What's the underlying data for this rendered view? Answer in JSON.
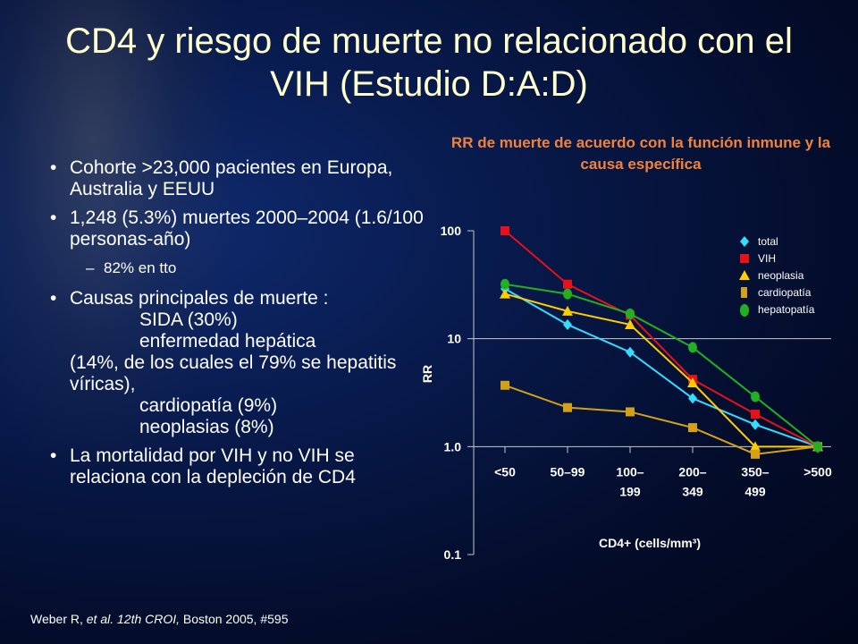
{
  "slide": {
    "title": "CD4 y riesgo de muerte no relacionado con el VIH (Estudio D:A:D)",
    "bullets": {
      "b1": "Cohorte >23,000 pacientes en Europa, Australia y EEUU",
      "b2": "1,248 (5.3%) muertes 2000–2004 (1.6/100 personas-año)",
      "b2_sub": "82% en tto",
      "b3_head": "Causas principales de muerte :",
      "b3_l1": "SIDA (30%)",
      "b3_l2": "enfermedad hepática",
      "b3_l3": "(14%, de los cuales el 79% se hepatitis víricas),",
      "b3_l4": "cardiopatía (9%)",
      "b3_l5": "neoplasias (8%)",
      "b4": "La mortalidad por VIH y no VIH se relaciona con la depleción de CD4"
    },
    "citation": {
      "pre": "Weber R, ",
      "italic": "et al. 12th CROI,",
      "post": " Boston 2005, #595"
    }
  },
  "chart_data": {
    "type": "line",
    "title": "RR de muerte de acuerdo con la función inmune y la causa específica",
    "xlabel": "CD4+ (cells/mm³)",
    "ylabel": "RR",
    "yscale": "log",
    "ylim": [
      0.1,
      100
    ],
    "yticks": [
      "100",
      "10",
      "1.0",
      "0.1"
    ],
    "ytick_values": [
      100,
      10,
      1,
      0.1
    ],
    "categories": [
      "<50",
      "50–99",
      "100–199",
      "200–349",
      "350–499",
      ">500"
    ],
    "category_labels": [
      [
        "<50"
      ],
      [
        "50–99"
      ],
      [
        "100–",
        "199"
      ],
      [
        "200–",
        "349"
      ],
      [
        "350–",
        "499"
      ],
      [
        ">500"
      ]
    ],
    "legend_position": "top-right",
    "gridlines_at": [
      10
    ],
    "series": [
      {
        "name": "total",
        "marker": "diamond",
        "color": "#33ddff",
        "values": [
          29,
          13.5,
          7.5,
          2.8,
          1.6,
          1.0
        ]
      },
      {
        "name": "VIH",
        "marker": "square",
        "color": "#e8111a",
        "values": [
          100,
          32,
          16.5,
          4.2,
          2.0,
          1.0
        ]
      },
      {
        "name": "neoplasia",
        "marker": "triangle",
        "color": "#ffcc00",
        "values": [
          26,
          18,
          13.5,
          3.9,
          1.0,
          1.0
        ]
      },
      {
        "name": "cardiopatía",
        "marker": "square",
        "color": "#d4a017",
        "values": [
          3.7,
          2.3,
          2.1,
          1.5,
          0.85,
          1.0
        ]
      },
      {
        "name": "hepatopatía",
        "marker": "circle",
        "color": "#22b022",
        "values": [
          32,
          26,
          17,
          8.3,
          2.9,
          1.0
        ]
      }
    ]
  }
}
